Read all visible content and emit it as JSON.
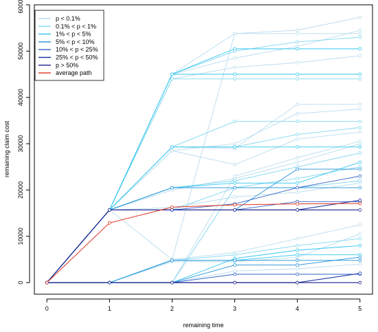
{
  "chart_data": {
    "type": "line",
    "xlabel": "remaining time",
    "ylabel": "remaining claim cost",
    "xlim": [
      -0.2,
      5.2
    ],
    "ylim": [
      -2500,
      60000
    ],
    "xticks": [
      0,
      1,
      2,
      3,
      4,
      5
    ],
    "yticks": [
      0,
      10000,
      20000,
      30000,
      40000,
      50000,
      60000
    ],
    "grid": false,
    "legend_position": "top-left",
    "legend": [
      {
        "label": "p < 0.1%",
        "color": "#b8dcef"
      },
      {
        "label": "0.1% < p < 1%",
        "color": "#7fd6f0"
      },
      {
        "label": "1% < p < 5%",
        "color": "#2fc6ee"
      },
      {
        "label": "5% < p < 10%",
        "color": "#1e8fd8"
      },
      {
        "label": "10% < p < 25%",
        "color": "#2f5fc8"
      },
      {
        "label": "25% < p < 50%",
        "color": "#1f3aa6"
      },
      {
        "label": "p > 50%",
        "color": "#1a1f8a"
      },
      {
        "label": "average path",
        "color": "#e0301e"
      }
    ],
    "series": [
      {
        "tier": 6,
        "points": [
          [
            0,
            0
          ],
          [
            1,
            15700
          ],
          [
            2,
            15700
          ],
          [
            3,
            15700
          ],
          [
            4,
            15700
          ],
          [
            5,
            15700
          ]
        ]
      },
      {
        "tier": 6,
        "points": [
          [
            0,
            0
          ],
          [
            1,
            0
          ],
          [
            2,
            0
          ],
          [
            3,
            0
          ],
          [
            4,
            0
          ],
          [
            5,
            0
          ]
        ]
      },
      {
        "tier": 5,
        "points": [
          [
            0,
            0
          ],
          [
            1,
            15700
          ],
          [
            2,
            15700
          ],
          [
            3,
            15700
          ],
          [
            4,
            15700
          ],
          [
            5,
            17800
          ]
        ]
      },
      {
        "tier": 5,
        "points": [
          [
            0,
            0
          ],
          [
            1,
            0
          ],
          [
            2,
            0
          ],
          [
            3,
            0
          ],
          [
            4,
            0
          ],
          [
            5,
            2000
          ]
        ]
      },
      {
        "tier": 4,
        "points": [
          [
            0,
            0
          ],
          [
            1,
            15700
          ],
          [
            2,
            15700
          ],
          [
            3,
            15700
          ],
          [
            4,
            17500
          ],
          [
            5,
            17500
          ]
        ]
      },
      {
        "tier": 4,
        "points": [
          [
            0,
            0
          ],
          [
            1,
            15700
          ],
          [
            2,
            15700
          ],
          [
            3,
            17000
          ],
          [
            4,
            20500
          ],
          [
            5,
            23000
          ]
        ]
      },
      {
        "tier": 4,
        "points": [
          [
            0,
            0
          ],
          [
            1,
            0
          ],
          [
            2,
            0
          ],
          [
            3,
            1800
          ],
          [
            4,
            1800
          ],
          [
            5,
            1800
          ]
        ]
      },
      {
        "tier": 3,
        "points": [
          [
            0,
            0
          ],
          [
            1,
            15700
          ],
          [
            2,
            20500
          ],
          [
            3,
            20500
          ],
          [
            4,
            20500
          ],
          [
            5,
            20500
          ]
        ]
      },
      {
        "tier": 3,
        "points": [
          [
            0,
            0
          ],
          [
            1,
            15700
          ],
          [
            2,
            15700
          ],
          [
            3,
            15700
          ],
          [
            4,
            24500
          ],
          [
            5,
            24500
          ]
        ]
      },
      {
        "tier": 3,
        "points": [
          [
            0,
            0
          ],
          [
            1,
            0
          ],
          [
            2,
            4800
          ],
          [
            3,
            4800
          ],
          [
            4,
            4800
          ],
          [
            5,
            4800
          ]
        ]
      },
      {
        "tier": 3,
        "points": [
          [
            0,
            0
          ],
          [
            1,
            0
          ],
          [
            2,
            0
          ],
          [
            3,
            3800
          ],
          [
            4,
            3800
          ],
          [
            5,
            5500
          ]
        ]
      },
      {
        "tier": 2,
        "points": [
          [
            0,
            0
          ],
          [
            1,
            15700
          ],
          [
            2,
            45000
          ],
          [
            3,
            45000
          ],
          [
            4,
            45000
          ],
          [
            5,
            45000
          ]
        ]
      },
      {
        "tier": 2,
        "points": [
          [
            0,
            0
          ],
          [
            1,
            15700
          ],
          [
            2,
            29300
          ],
          [
            3,
            29300
          ],
          [
            4,
            29300
          ],
          [
            5,
            29300
          ]
        ]
      },
      {
        "tier": 2,
        "points": [
          [
            0,
            0
          ],
          [
            1,
            15700
          ],
          [
            2,
            20500
          ],
          [
            3,
            21500
          ],
          [
            4,
            21500
          ],
          [
            5,
            26000
          ]
        ]
      },
      {
        "tier": 2,
        "points": [
          [
            0,
            0
          ],
          [
            1,
            15700
          ],
          [
            2,
            45000
          ],
          [
            3,
            50500
          ],
          [
            4,
            50500
          ],
          [
            5,
            50500
          ]
        ]
      },
      {
        "tier": 2,
        "points": [
          [
            0,
            0
          ],
          [
            1,
            0
          ],
          [
            2,
            4800
          ],
          [
            3,
            4800
          ],
          [
            4,
            6000
          ],
          [
            5,
            6000
          ]
        ]
      },
      {
        "tier": 2,
        "points": [
          [
            0,
            0
          ],
          [
            1,
            0
          ],
          [
            2,
            0
          ],
          [
            3,
            5200
          ],
          [
            4,
            7000
          ],
          [
            5,
            8000
          ]
        ]
      },
      {
        "tier": 1,
        "points": [
          [
            0,
            0
          ],
          [
            1,
            15700
          ],
          [
            2,
            45000
          ],
          [
            3,
            50000
          ],
          [
            4,
            52000
          ],
          [
            5,
            53000
          ]
        ]
      },
      {
        "tier": 1,
        "points": [
          [
            0,
            0
          ],
          [
            1,
            15700
          ],
          [
            2,
            44000
          ],
          [
            3,
            44000
          ],
          [
            4,
            44000
          ],
          [
            5,
            44000
          ]
        ]
      },
      {
        "tier": 1,
        "points": [
          [
            0,
            0
          ],
          [
            1,
            15700
          ],
          [
            2,
            29300
          ],
          [
            3,
            34800
          ],
          [
            4,
            34800
          ],
          [
            5,
            34800
          ]
        ]
      },
      {
        "tier": 1,
        "points": [
          [
            0,
            0
          ],
          [
            1,
            15700
          ],
          [
            2,
            29300
          ],
          [
            3,
            29300
          ],
          [
            4,
            32000
          ],
          [
            5,
            33500
          ]
        ]
      },
      {
        "tier": 1,
        "points": [
          [
            0,
            0
          ],
          [
            1,
            15700
          ],
          [
            2,
            20500
          ],
          [
            3,
            22000
          ],
          [
            4,
            25000
          ],
          [
            5,
            28000
          ]
        ]
      },
      {
        "tier": 1,
        "points": [
          [
            0,
            0
          ],
          [
            1,
            15700
          ],
          [
            2,
            15700
          ],
          [
            3,
            20500
          ],
          [
            4,
            22500
          ],
          [
            5,
            25000
          ]
        ]
      },
      {
        "tier": 1,
        "points": [
          [
            0,
            0
          ],
          [
            1,
            0
          ],
          [
            2,
            4800
          ],
          [
            3,
            6000
          ],
          [
            4,
            8000
          ],
          [
            5,
            9500
          ]
        ]
      },
      {
        "tier": 1,
        "points": [
          [
            0,
            0
          ],
          [
            1,
            0
          ],
          [
            2,
            0
          ],
          [
            3,
            20500
          ],
          [
            4,
            20500
          ],
          [
            5,
            22000
          ]
        ]
      },
      {
        "tier": 0,
        "points": [
          [
            0,
            0
          ],
          [
            1,
            15700
          ],
          [
            2,
            45000
          ],
          [
            3,
            53800
          ],
          [
            4,
            54500
          ],
          [
            5,
            57300
          ]
        ]
      },
      {
        "tier": 0,
        "points": [
          [
            0,
            0
          ],
          [
            1,
            15700
          ],
          [
            2,
            45000
          ],
          [
            3,
            48500
          ],
          [
            4,
            51000
          ],
          [
            5,
            54500
          ]
        ]
      },
      {
        "tier": 0,
        "points": [
          [
            0,
            0
          ],
          [
            1,
            15700
          ],
          [
            2,
            44000
          ],
          [
            3,
            46500
          ],
          [
            4,
            47500
          ],
          [
            5,
            49000
          ]
        ]
      },
      {
        "tier": 0,
        "points": [
          [
            0,
            0
          ],
          [
            1,
            15700
          ],
          [
            2,
            29300
          ],
          [
            3,
            29000
          ],
          [
            4,
            38500
          ],
          [
            5,
            38500
          ]
        ]
      },
      {
        "tier": 0,
        "points": [
          [
            0,
            0
          ],
          [
            1,
            15700
          ],
          [
            2,
            28500
          ],
          [
            3,
            30000
          ],
          [
            4,
            36500
          ],
          [
            5,
            37500
          ]
        ]
      },
      {
        "tier": 0,
        "points": [
          [
            0,
            0
          ],
          [
            1,
            15700
          ],
          [
            2,
            28500
          ],
          [
            3,
            25500
          ],
          [
            4,
            31000
          ],
          [
            5,
            32500
          ]
        ]
      },
      {
        "tier": 0,
        "points": [
          [
            0,
            0
          ],
          [
            1,
            15700
          ],
          [
            2,
            20000
          ],
          [
            3,
            22500
          ],
          [
            4,
            26000
          ],
          [
            5,
            30000
          ]
        ]
      },
      {
        "tier": 0,
        "points": [
          [
            0,
            0
          ],
          [
            1,
            15700
          ],
          [
            2,
            16200
          ],
          [
            3,
            18500
          ],
          [
            4,
            19500
          ],
          [
            5,
            21500
          ]
        ]
      },
      {
        "tier": 0,
        "points": [
          [
            0,
            0
          ],
          [
            1,
            15700
          ],
          [
            2,
            5000
          ],
          [
            3,
            53800
          ],
          [
            4,
            53800
          ],
          [
            5,
            53800
          ]
        ]
      },
      {
        "tier": 0,
        "points": [
          [
            0,
            0
          ],
          [
            1,
            0
          ],
          [
            2,
            5000
          ],
          [
            3,
            6500
          ],
          [
            4,
            9500
          ],
          [
            5,
            12500
          ]
        ]
      },
      {
        "tier": 0,
        "points": [
          [
            0,
            0
          ],
          [
            1,
            0
          ],
          [
            2,
            4500
          ],
          [
            3,
            4500
          ],
          [
            4,
            5500
          ],
          [
            5,
            10500
          ]
        ]
      },
      {
        "tier": 0,
        "points": [
          [
            0,
            0
          ],
          [
            1,
            0
          ],
          [
            2,
            0
          ],
          [
            3,
            2500
          ],
          [
            4,
            3000
          ],
          [
            5,
            4000
          ]
        ]
      },
      {
        "tier": 0,
        "points": [
          [
            0,
            0
          ],
          [
            1,
            0
          ],
          [
            2,
            0
          ],
          [
            3,
            23000
          ],
          [
            4,
            27000
          ],
          [
            5,
            30500
          ]
        ]
      },
      {
        "tier": 7,
        "points": [
          [
            0,
            0
          ],
          [
            1,
            12900
          ],
          [
            2,
            16300
          ],
          [
            3,
            16800
          ],
          [
            4,
            17000
          ],
          [
            5,
            17100
          ]
        ]
      }
    ]
  }
}
